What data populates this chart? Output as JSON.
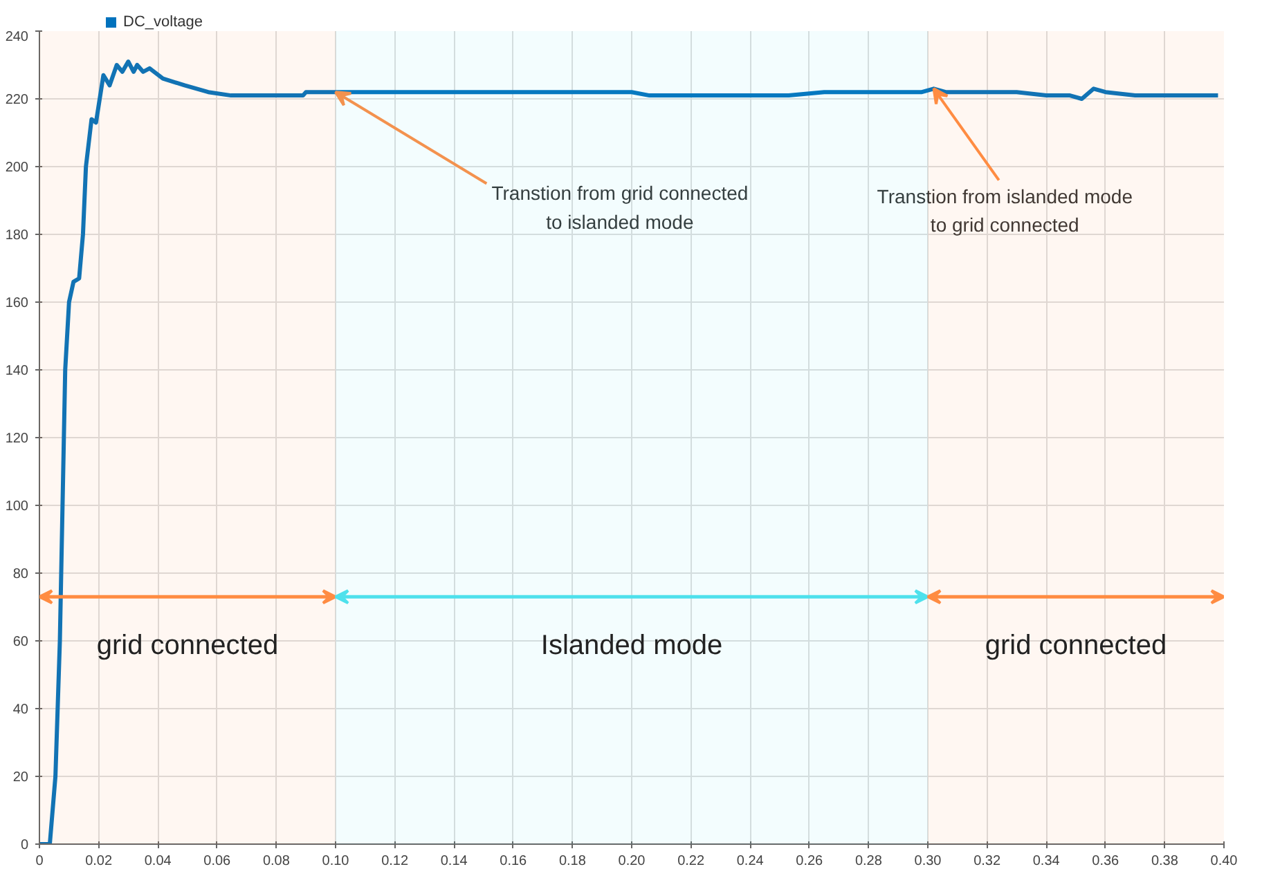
{
  "chart_data": {
    "type": "line",
    "x": [
      0,
      0.0035,
      0.0054,
      0.0069,
      0.0087,
      0.01,
      0.0115,
      0.0134,
      0.0147,
      0.0157,
      0.0176,
      0.0191,
      0.0216,
      0.0237,
      0.0261,
      0.028,
      0.03,
      0.0318,
      0.033,
      0.035,
      0.0372,
      0.0417,
      0.049,
      0.057,
      0.0647,
      0.066,
      0.077,
      0.079,
      0.089,
      0.09,
      0.2,
      0.206,
      0.253,
      0.265,
      0.298,
      0.302,
      0.306,
      0.32,
      0.33,
      0.34,
      0.348,
      0.352,
      0.356,
      0.36,
      0.37,
      0.398
    ],
    "series": [
      {
        "name": "DC_voltage",
        "color": "#0072bd",
        "values": [
          0,
          0,
          20,
          60,
          140,
          160,
          166,
          167,
          180,
          200,
          214,
          213,
          227,
          224,
          230,
          228,
          231,
          228,
          230,
          228,
          229,
          226,
          224,
          222,
          221,
          221,
          221,
          221,
          221,
          222,
          222,
          221,
          221,
          222,
          222,
          223,
          222,
          222,
          222,
          221,
          221,
          220,
          223,
          222,
          221,
          221
        ]
      }
    ],
    "xlim": [
      0,
      0.4
    ],
    "ylim": [
      0,
      240
    ],
    "xticks": [
      0,
      0.02,
      0.04,
      0.06,
      0.08,
      {
        "value": 0.1,
        "label": "0.10"
      },
      0.12,
      0.14,
      0.16,
      0.18,
      {
        "value": 0.2,
        "label": "0.20"
      },
      0.22,
      0.24,
      0.26,
      0.28,
      {
        "value": 0.3,
        "label": "0.30"
      },
      0.32,
      0.34,
      0.36,
      0.38,
      {
        "value": 0.4,
        "label": "0.40"
      }
    ],
    "yticks": [
      0,
      20,
      40,
      60,
      80,
      100,
      120,
      140,
      160,
      180,
      200,
      220,
      240
    ],
    "grid": true,
    "legend": "top left",
    "line_style": "solid",
    "marker": "none",
    "annotations": [
      {
        "text": "Transtion from grid connected\nto islanded mode",
        "x": 0.1,
        "y": 222
      },
      {
        "text": "Transtion from islanded mode\nto grid connected",
        "x": 0.302,
        "y": 223
      }
    ],
    "bands": [
      {
        "axis": "x",
        "from": 0,
        "to": 0.1,
        "label": "grid connected",
        "color": "#ff8c42"
      },
      {
        "axis": "x",
        "from": 0.1,
        "to": 0.3,
        "label": "Islanded mode",
        "color": "#4ee1ec"
      },
      {
        "axis": "x",
        "from": 0.3,
        "to": 0.4,
        "label": "grid connected",
        "color": "#ff8c42"
      }
    ]
  }
}
